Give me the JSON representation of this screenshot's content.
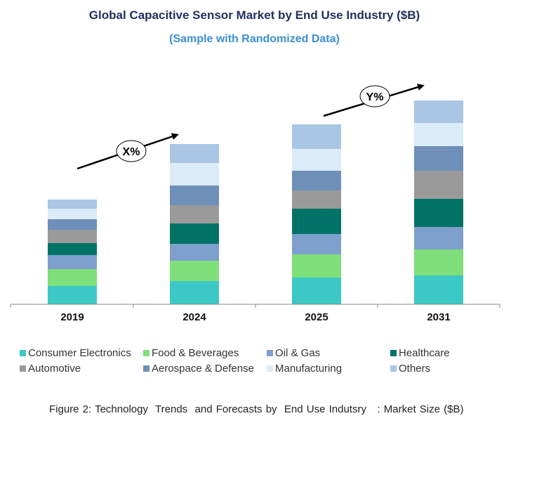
{
  "chart_data": {
    "type": "bar",
    "stacked": true,
    "title": "Global Capacitive Sensor Market by End Use Industry ($B)",
    "subtitle": "(Sample with Randomized Data)",
    "categories": [
      "2019",
      "2024",
      "2025",
      "2031"
    ],
    "series": [
      {
        "name": "Consumer Electronics",
        "color": "#3cc8c4",
        "values": [
          26,
          33,
          38,
          41
        ]
      },
      {
        "name": "Food & Beverages",
        "color": "#7fdf7a",
        "values": [
          24,
          29,
          33,
          37
        ]
      },
      {
        "name": "Oil & Gas",
        "color": "#7ea0cc",
        "values": [
          20,
          24,
          29,
          32
        ]
      },
      {
        "name": "Healthcare",
        "color": "#007366",
        "values": [
          17,
          29,
          36,
          40
        ]
      },
      {
        "name": "Automotive",
        "color": "#9a9a9a",
        "values": [
          19,
          26,
          26,
          40
        ]
      },
      {
        "name": "Aerospace & Defense",
        "color": "#6d8fb8",
        "values": [
          15,
          28,
          28,
          35
        ]
      },
      {
        "name": "Manufacturing",
        "color": "#dcebf8",
        "values": [
          15,
          32,
          31,
          33
        ]
      },
      {
        "name": "Others",
        "color": "#a9c6e4",
        "values": [
          13,
          27,
          35,
          32
        ]
      }
    ],
    "annotations": [
      {
        "label": "X%",
        "from": "2019",
        "to": "2024"
      },
      {
        "label": "Y%",
        "from": "2025",
        "to": "2031"
      }
    ],
    "axes_visible": {
      "y": false,
      "x": true
    },
    "grid": false,
    "legend_position": "bottom"
  },
  "caption": "Figure 2: Technology  Trends  and Forecasts by  End Use Indutsry   : Market Size ($B)"
}
